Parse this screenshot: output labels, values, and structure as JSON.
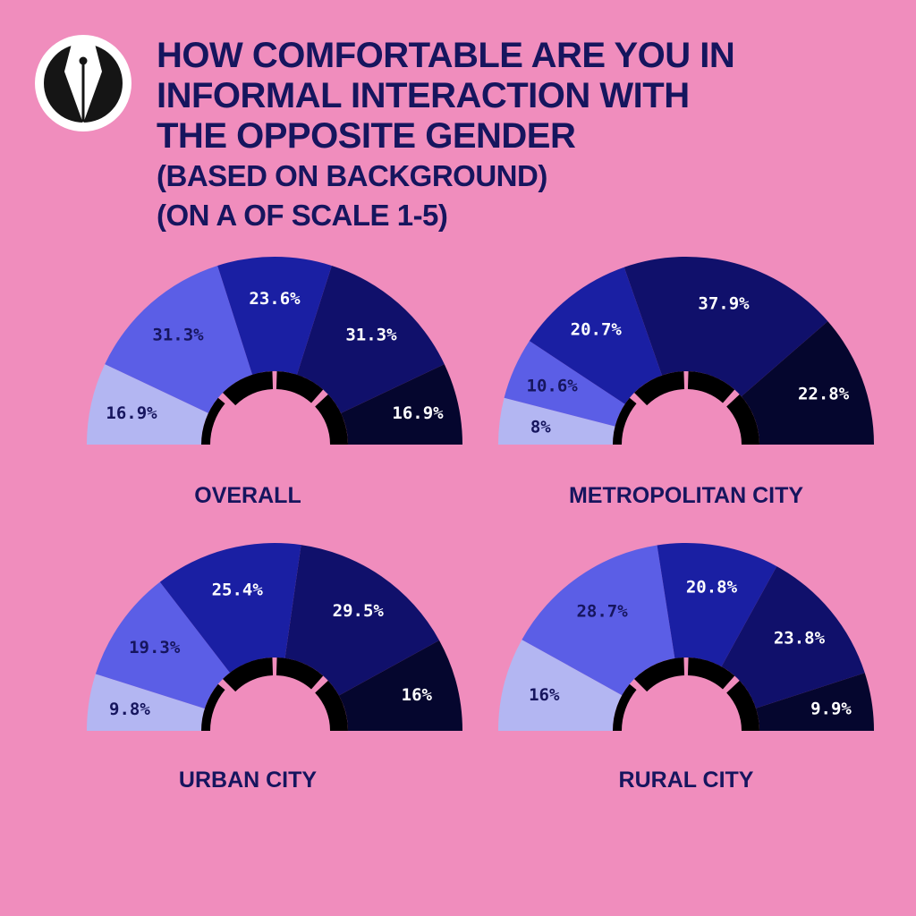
{
  "header": {
    "title_lines": [
      "HOW COMFORTABLE ARE YOU IN",
      "INFORMAL INTERACTION WITH",
      "THE OPPOSITE GENDER"
    ],
    "subtitle_lines": [
      "(BASED ON BACKGROUND)",
      "(ON A OF SCALE 1-5)"
    ],
    "logo_icon": "fountain-pen-nib-icon"
  },
  "colors": {
    "background": "#f08dbd",
    "text": "#16155e",
    "scale": [
      "#b3b6f2",
      "#5b5ee6",
      "#1a1fa3",
      "#10106b",
      "#05062e"
    ]
  },
  "chart_data": [
    {
      "type": "pie",
      "subtype": "half-donut",
      "title": "OVERALL",
      "categories": [
        "1",
        "2",
        "3",
        "4",
        "5"
      ],
      "values": [
        16.9,
        31.3,
        23.6,
        31.3,
        16.9
      ],
      "labels": [
        "16.9%",
        "31.3%",
        "23.6%",
        "31.3%",
        "16.9%"
      ]
    },
    {
      "type": "pie",
      "subtype": "half-donut",
      "title": "METROPOLITAN CITY",
      "categories": [
        "1",
        "2",
        "3",
        "4",
        "5"
      ],
      "values": [
        8,
        10.6,
        20.7,
        37.9,
        22.8
      ],
      "labels": [
        "8%",
        "10.6%",
        "20.7%",
        "37.9%",
        "22.8%"
      ]
    },
    {
      "type": "pie",
      "subtype": "half-donut",
      "title": "URBAN CITY",
      "categories": [
        "1",
        "2",
        "3",
        "4",
        "5"
      ],
      "values": [
        9.8,
        19.3,
        25.4,
        29.5,
        16
      ],
      "labels": [
        "9.8%",
        "19.3%",
        "25.4%",
        "29.5%",
        "16%"
      ]
    },
    {
      "type": "pie",
      "subtype": "half-donut",
      "title": "RURAL CITY",
      "categories": [
        "1",
        "2",
        "3",
        "4",
        "5"
      ],
      "values": [
        16,
        28.7,
        20.8,
        23.8,
        9.9
      ],
      "labels": [
        "16%",
        "28.7%",
        "20.8%",
        "23.8%",
        "9.9%"
      ]
    }
  ]
}
